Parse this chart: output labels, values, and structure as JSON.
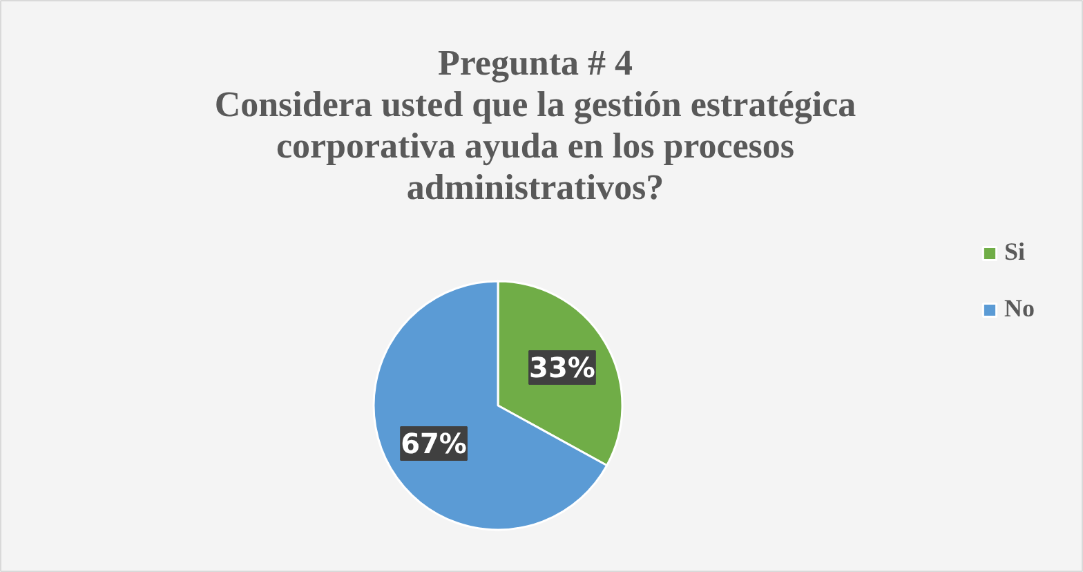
{
  "chart_data": {
    "type": "pie",
    "title": "Pregunta # 4",
    "subtitle": "Considera usted que la gestión estratégica corporativa ayuda en los procesos administrativos?",
    "categories": [
      "Si",
      "No"
    ],
    "values": [
      33,
      67
    ],
    "colors": [
      "#70ad47",
      "#5b9bd5"
    ],
    "value_labels": [
      "33%",
      "67%"
    ],
    "legend": "right"
  }
}
